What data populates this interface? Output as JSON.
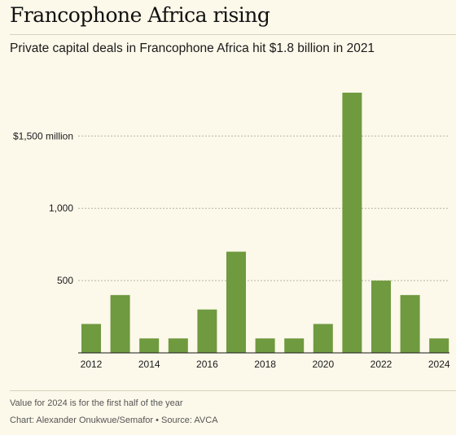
{
  "title": "Francophone Africa rising",
  "subtitle": "Private capital deals in Francophone Africa hit $1.8 billion in 2021",
  "note": "Value for 2024 is for the first half of the year",
  "source": "Chart: Alexander Onukwue/Semafor • Source: AVCA",
  "colors": {
    "bar": "#6f9a3f",
    "background": "#fcf8ea",
    "grid": "#b8b3a2"
  },
  "chart_data": {
    "type": "bar",
    "categories": [
      "2012",
      "2013",
      "2014",
      "2015",
      "2016",
      "2017",
      "2018",
      "2019",
      "2020",
      "2021",
      "2022",
      "2023",
      "2024"
    ],
    "values": [
      200,
      400,
      100,
      100,
      300,
      700,
      100,
      100,
      200,
      1800,
      500,
      400,
      100
    ],
    "ylim": [
      0,
      1800
    ],
    "y_ticks": [
      {
        "value": 500,
        "label": "500"
      },
      {
        "value": 1000,
        "label": "1,000"
      },
      {
        "value": 1500,
        "label": "$1,500 million"
      }
    ],
    "x_tick_labels": [
      "2012",
      "2014",
      "2016",
      "2018",
      "2020",
      "2022",
      "2024"
    ],
    "grid": true
  }
}
